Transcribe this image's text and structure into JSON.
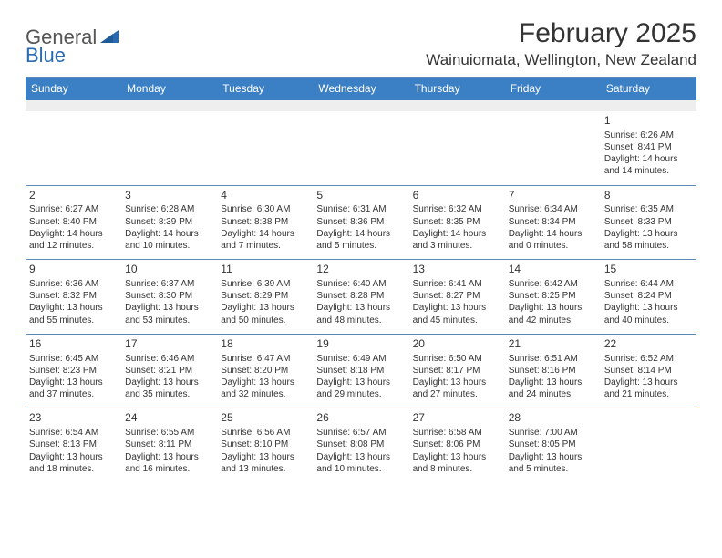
{
  "logo": {
    "text_general": "General",
    "text_blue": "Blue",
    "triangle_color": "#2a6bb0",
    "gray_color": "#555555"
  },
  "header": {
    "month_title": "February 2025",
    "location": "Wainuiomata, Wellington, New Zealand"
  },
  "colors": {
    "header_bg": "#3b7fc4",
    "header_text": "#ffffff",
    "rule": "#5a88b8",
    "spacer_bg": "#eeeeee",
    "text": "#333333",
    "background": "#ffffff"
  },
  "day_names": [
    "Sunday",
    "Monday",
    "Tuesday",
    "Wednesday",
    "Thursday",
    "Friday",
    "Saturday"
  ],
  "weeks": [
    [
      null,
      null,
      null,
      null,
      null,
      null,
      {
        "n": "1",
        "sr": "Sunrise: 6:26 AM",
        "ss": "Sunset: 8:41 PM",
        "dl1": "Daylight: 14 hours",
        "dl2": "and 14 minutes."
      }
    ],
    [
      {
        "n": "2",
        "sr": "Sunrise: 6:27 AM",
        "ss": "Sunset: 8:40 PM",
        "dl1": "Daylight: 14 hours",
        "dl2": "and 12 minutes."
      },
      {
        "n": "3",
        "sr": "Sunrise: 6:28 AM",
        "ss": "Sunset: 8:39 PM",
        "dl1": "Daylight: 14 hours",
        "dl2": "and 10 minutes."
      },
      {
        "n": "4",
        "sr": "Sunrise: 6:30 AM",
        "ss": "Sunset: 8:38 PM",
        "dl1": "Daylight: 14 hours",
        "dl2": "and 7 minutes."
      },
      {
        "n": "5",
        "sr": "Sunrise: 6:31 AM",
        "ss": "Sunset: 8:36 PM",
        "dl1": "Daylight: 14 hours",
        "dl2": "and 5 minutes."
      },
      {
        "n": "6",
        "sr": "Sunrise: 6:32 AM",
        "ss": "Sunset: 8:35 PM",
        "dl1": "Daylight: 14 hours",
        "dl2": "and 3 minutes."
      },
      {
        "n": "7",
        "sr": "Sunrise: 6:34 AM",
        "ss": "Sunset: 8:34 PM",
        "dl1": "Daylight: 14 hours",
        "dl2": "and 0 minutes."
      },
      {
        "n": "8",
        "sr": "Sunrise: 6:35 AM",
        "ss": "Sunset: 8:33 PM",
        "dl1": "Daylight: 13 hours",
        "dl2": "and 58 minutes."
      }
    ],
    [
      {
        "n": "9",
        "sr": "Sunrise: 6:36 AM",
        "ss": "Sunset: 8:32 PM",
        "dl1": "Daylight: 13 hours",
        "dl2": "and 55 minutes."
      },
      {
        "n": "10",
        "sr": "Sunrise: 6:37 AM",
        "ss": "Sunset: 8:30 PM",
        "dl1": "Daylight: 13 hours",
        "dl2": "and 53 minutes."
      },
      {
        "n": "11",
        "sr": "Sunrise: 6:39 AM",
        "ss": "Sunset: 8:29 PM",
        "dl1": "Daylight: 13 hours",
        "dl2": "and 50 minutes."
      },
      {
        "n": "12",
        "sr": "Sunrise: 6:40 AM",
        "ss": "Sunset: 8:28 PM",
        "dl1": "Daylight: 13 hours",
        "dl2": "and 48 minutes."
      },
      {
        "n": "13",
        "sr": "Sunrise: 6:41 AM",
        "ss": "Sunset: 8:27 PM",
        "dl1": "Daylight: 13 hours",
        "dl2": "and 45 minutes."
      },
      {
        "n": "14",
        "sr": "Sunrise: 6:42 AM",
        "ss": "Sunset: 8:25 PM",
        "dl1": "Daylight: 13 hours",
        "dl2": "and 42 minutes."
      },
      {
        "n": "15",
        "sr": "Sunrise: 6:44 AM",
        "ss": "Sunset: 8:24 PM",
        "dl1": "Daylight: 13 hours",
        "dl2": "and 40 minutes."
      }
    ],
    [
      {
        "n": "16",
        "sr": "Sunrise: 6:45 AM",
        "ss": "Sunset: 8:23 PM",
        "dl1": "Daylight: 13 hours",
        "dl2": "and 37 minutes."
      },
      {
        "n": "17",
        "sr": "Sunrise: 6:46 AM",
        "ss": "Sunset: 8:21 PM",
        "dl1": "Daylight: 13 hours",
        "dl2": "and 35 minutes."
      },
      {
        "n": "18",
        "sr": "Sunrise: 6:47 AM",
        "ss": "Sunset: 8:20 PM",
        "dl1": "Daylight: 13 hours",
        "dl2": "and 32 minutes."
      },
      {
        "n": "19",
        "sr": "Sunrise: 6:49 AM",
        "ss": "Sunset: 8:18 PM",
        "dl1": "Daylight: 13 hours",
        "dl2": "and 29 minutes."
      },
      {
        "n": "20",
        "sr": "Sunrise: 6:50 AM",
        "ss": "Sunset: 8:17 PM",
        "dl1": "Daylight: 13 hours",
        "dl2": "and 27 minutes."
      },
      {
        "n": "21",
        "sr": "Sunrise: 6:51 AM",
        "ss": "Sunset: 8:16 PM",
        "dl1": "Daylight: 13 hours",
        "dl2": "and 24 minutes."
      },
      {
        "n": "22",
        "sr": "Sunrise: 6:52 AM",
        "ss": "Sunset: 8:14 PM",
        "dl1": "Daylight: 13 hours",
        "dl2": "and 21 minutes."
      }
    ],
    [
      {
        "n": "23",
        "sr": "Sunrise: 6:54 AM",
        "ss": "Sunset: 8:13 PM",
        "dl1": "Daylight: 13 hours",
        "dl2": "and 18 minutes."
      },
      {
        "n": "24",
        "sr": "Sunrise: 6:55 AM",
        "ss": "Sunset: 8:11 PM",
        "dl1": "Daylight: 13 hours",
        "dl2": "and 16 minutes."
      },
      {
        "n": "25",
        "sr": "Sunrise: 6:56 AM",
        "ss": "Sunset: 8:10 PM",
        "dl1": "Daylight: 13 hours",
        "dl2": "and 13 minutes."
      },
      {
        "n": "26",
        "sr": "Sunrise: 6:57 AM",
        "ss": "Sunset: 8:08 PM",
        "dl1": "Daylight: 13 hours",
        "dl2": "and 10 minutes."
      },
      {
        "n": "27",
        "sr": "Sunrise: 6:58 AM",
        "ss": "Sunset: 8:06 PM",
        "dl1": "Daylight: 13 hours",
        "dl2": "and 8 minutes."
      },
      {
        "n": "28",
        "sr": "Sunrise: 7:00 AM",
        "ss": "Sunset: 8:05 PM",
        "dl1": "Daylight: 13 hours",
        "dl2": "and 5 minutes."
      },
      null
    ]
  ]
}
